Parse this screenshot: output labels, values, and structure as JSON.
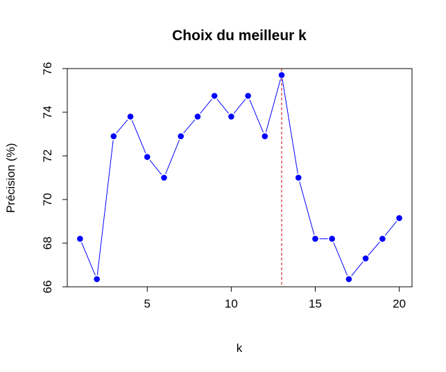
{
  "chart_data": {
    "type": "line",
    "title": "Choix du meilleur k",
    "xlabel": "k",
    "ylabel": "Précision (%)",
    "x": [
      1,
      2,
      3,
      4,
      5,
      6,
      7,
      8,
      9,
      10,
      11,
      12,
      13,
      14,
      15,
      16,
      17,
      18,
      19,
      20
    ],
    "series": [
      {
        "values": [
          68.2,
          66.35,
          72.9,
          73.8,
          71.95,
          71.0,
          72.9,
          73.8,
          74.75,
          73.8,
          74.75,
          72.9,
          75.7,
          71.0,
          68.2,
          68.2,
          66.35,
          67.3,
          68.2,
          69.15
        ]
      }
    ],
    "xticks": [
      "5",
      "10",
      "15",
      "20"
    ],
    "yticks": [
      "66",
      "68",
      "70",
      "72",
      "74",
      "76"
    ],
    "xlim": [
      0.24,
      20.76
    ],
    "ylim": [
      66,
      76
    ],
    "vline_x": 13,
    "line_color": "#0000ff",
    "marker_color": "#0000ff",
    "vline_color": "#cc0000",
    "grid": false,
    "legend": "none"
  }
}
